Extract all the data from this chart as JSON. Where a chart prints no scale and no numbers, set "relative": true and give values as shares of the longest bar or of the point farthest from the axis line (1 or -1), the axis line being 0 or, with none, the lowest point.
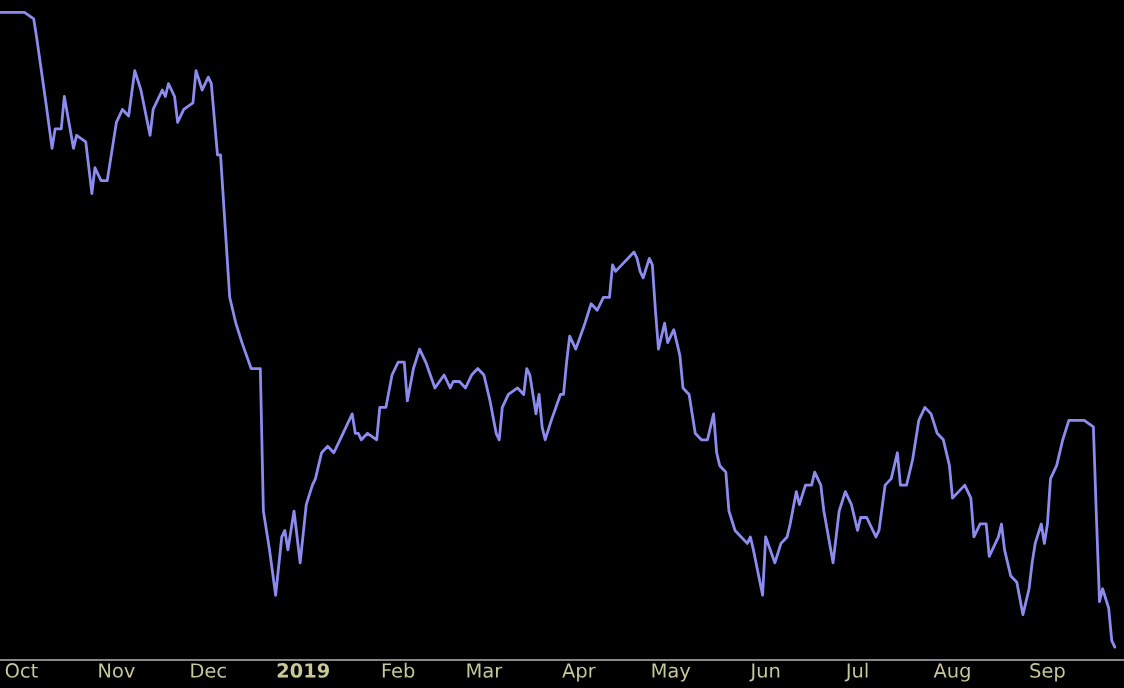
{
  "chart_data": {
    "type": "line",
    "relative": true,
    "grid": false,
    "marker": "none",
    "line_style": "solid",
    "xlim": [
      "2018-09-24",
      "2019-09-26"
    ],
    "xticks": [
      {
        "value": "2018-10-01",
        "label": "Oct"
      },
      {
        "value": "2018-11-01",
        "label": "Nov"
      },
      {
        "value": "2018-12-01",
        "label": "Dec"
      },
      {
        "value": "2019-01-01",
        "label": "2019"
      },
      {
        "value": "2019-02-01",
        "label": "Feb"
      },
      {
        "value": "2019-03-01",
        "label": "Mar"
      },
      {
        "value": "2019-04-01",
        "label": "Apr"
      },
      {
        "value": "2019-05-01",
        "label": "May"
      },
      {
        "value": "2019-06-01",
        "label": "Jun"
      },
      {
        "value": "2019-07-01",
        "label": "Jul"
      },
      {
        "value": "2019-08-01",
        "label": "Aug"
      },
      {
        "value": "2019-09-01",
        "label": "Sep"
      }
    ],
    "x": [
      "2018-09-24",
      "2018-09-30",
      "2018-10-02",
      "2018-10-05",
      "2018-10-06",
      "2018-10-09",
      "2018-10-11",
      "2018-10-12",
      "2018-10-14",
      "2018-10-15",
      "2018-10-18",
      "2018-10-19",
      "2018-10-22",
      "2018-10-24",
      "2018-10-25",
      "2018-10-27",
      "2018-10-29",
      "2018-10-31",
      "2018-11-01",
      "2018-11-03",
      "2018-11-05",
      "2018-11-07",
      "2018-11-09",
      "2018-11-12",
      "2018-11-13",
      "2018-11-16",
      "2018-11-17",
      "2018-11-18",
      "2018-11-20",
      "2018-11-21",
      "2018-11-23",
      "2018-11-26",
      "2018-11-27",
      "2018-11-29",
      "2018-12-01",
      "2018-12-02",
      "2018-12-04",
      "2018-12-05",
      "2018-12-08",
      "2018-12-10",
      "2018-12-12",
      "2018-12-15",
      "2018-12-16",
      "2018-12-18",
      "2018-12-19",
      "2018-12-21",
      "2018-12-23",
      "2018-12-25",
      "2018-12-26",
      "2018-12-27",
      "2018-12-29",
      "2018-12-31",
      "2019-01-02",
      "2019-01-04",
      "2019-01-05",
      "2019-01-07",
      "2019-01-09",
      "2019-01-11",
      "2019-01-13",
      "2019-01-15",
      "2019-01-17",
      "2019-01-18",
      "2019-01-19",
      "2019-01-20",
      "2019-01-22",
      "2019-01-25",
      "2019-01-26",
      "2019-01-28",
      "2019-01-30",
      "2019-02-01",
      "2019-02-03",
      "2019-02-04",
      "2019-02-06",
      "2019-02-08",
      "2019-02-10",
      "2019-02-13",
      "2019-02-16",
      "2019-02-18",
      "2019-02-19",
      "2019-02-21",
      "2019-02-23",
      "2019-02-25",
      "2019-02-27",
      "2019-03-01",
      "2019-03-03",
      "2019-03-05",
      "2019-03-06",
      "2019-03-07",
      "2019-03-09",
      "2019-03-12",
      "2019-03-14",
      "2019-03-15",
      "2019-03-16",
      "2019-03-18",
      "2019-03-19",
      "2019-03-20",
      "2019-03-21",
      "2019-03-23",
      "2019-03-26",
      "2019-03-27",
      "2019-03-28",
      "2019-03-29",
      "2019-03-31",
      "2019-04-03",
      "2019-04-05",
      "2019-04-07",
      "2019-04-09",
      "2019-04-11",
      "2019-04-12",
      "2019-04-13",
      "2019-04-15",
      "2019-04-17",
      "2019-04-19",
      "2019-04-20",
      "2019-04-21",
      "2019-04-22",
      "2019-04-24",
      "2019-04-25",
      "2019-04-26",
      "2019-04-27",
      "2019-04-29",
      "2019-04-30",
      "2019-05-02",
      "2019-05-04",
      "2019-05-05",
      "2019-05-07",
      "2019-05-09",
      "2019-05-11",
      "2019-05-13",
      "2019-05-15",
      "2019-05-16",
      "2019-05-17",
      "2019-05-19",
      "2019-05-20",
      "2019-05-22",
      "2019-05-24",
      "2019-05-26",
      "2019-05-27",
      "2019-05-28",
      "2019-05-31",
      "2019-06-01",
      "2019-06-04",
      "2019-06-06",
      "2019-06-08",
      "2019-06-09",
      "2019-06-11",
      "2019-06-12",
      "2019-06-14",
      "2019-06-16",
      "2019-06-17",
      "2019-06-19",
      "2019-06-20",
      "2019-06-23",
      "2019-06-25",
      "2019-06-27",
      "2019-06-29",
      "2019-07-01",
      "2019-07-02",
      "2019-07-04",
      "2019-07-07",
      "2019-07-08",
      "2019-07-10",
      "2019-07-12",
      "2019-07-14",
      "2019-07-15",
      "2019-07-17",
      "2019-07-19",
      "2019-07-21",
      "2019-07-23",
      "2019-07-25",
      "2019-07-27",
      "2019-07-29",
      "2019-07-31",
      "2019-08-01",
      "2019-08-03",
      "2019-08-05",
      "2019-08-07",
      "2019-08-08",
      "2019-08-10",
      "2019-08-12",
      "2019-08-13",
      "2019-08-15",
      "2019-08-16",
      "2019-08-17",
      "2019-08-18",
      "2019-08-20",
      "2019-08-22",
      "2019-08-24",
      "2019-08-26",
      "2019-08-27",
      "2019-08-28",
      "2019-08-30",
      "2019-08-31",
      "2019-09-01",
      "2019-09-02",
      "2019-09-04",
      "2019-09-06",
      "2019-09-08",
      "2019-09-10",
      "2019-09-13",
      "2019-09-16",
      "2019-09-17",
      "2019-09-18",
      "2019-09-19",
      "2019-09-21",
      "2019-09-22",
      "2019-09-23"
    ],
    "series": [
      {
        "color": "#8c8cf0",
        "values": [
          1.0,
          1.0,
          1.0,
          0.99,
          0.96,
          0.86,
          0.79,
          0.82,
          0.82,
          0.87,
          0.79,
          0.81,
          0.8,
          0.72,
          0.76,
          0.74,
          0.74,
          0.8,
          0.83,
          0.85,
          0.84,
          0.91,
          0.88,
          0.81,
          0.85,
          0.88,
          0.87,
          0.89,
          0.87,
          0.83,
          0.85,
          0.86,
          0.91,
          0.88,
          0.9,
          0.89,
          0.78,
          0.78,
          0.56,
          0.52,
          0.49,
          0.45,
          0.45,
          0.45,
          0.23,
          0.17,
          0.1,
          0.19,
          0.2,
          0.17,
          0.23,
          0.15,
          0.24,
          0.27,
          0.28,
          0.32,
          0.33,
          0.32,
          0.34,
          0.36,
          0.38,
          0.35,
          0.35,
          0.34,
          0.35,
          0.34,
          0.39,
          0.39,
          0.44,
          0.46,
          0.46,
          0.4,
          0.45,
          0.48,
          0.46,
          0.42,
          0.44,
          0.42,
          0.43,
          0.43,
          0.42,
          0.44,
          0.45,
          0.44,
          0.4,
          0.35,
          0.34,
          0.39,
          0.41,
          0.42,
          0.41,
          0.45,
          0.44,
          0.38,
          0.41,
          0.36,
          0.34,
          0.37,
          0.41,
          0.41,
          0.46,
          0.5,
          0.48,
          0.52,
          0.55,
          0.54,
          0.56,
          0.56,
          0.61,
          0.6,
          0.61,
          0.62,
          0.63,
          0.62,
          0.6,
          0.59,
          0.62,
          0.61,
          0.54,
          0.48,
          0.52,
          0.49,
          0.51,
          0.47,
          0.42,
          0.41,
          0.35,
          0.34,
          0.34,
          0.38,
          0.32,
          0.3,
          0.29,
          0.23,
          0.2,
          0.19,
          0.18,
          0.19,
          0.17,
          0.1,
          0.19,
          0.15,
          0.18,
          0.19,
          0.21,
          0.26,
          0.24,
          0.27,
          0.27,
          0.29,
          0.27,
          0.23,
          0.15,
          0.23,
          0.26,
          0.24,
          0.2,
          0.22,
          0.22,
          0.19,
          0.2,
          0.27,
          0.28,
          0.32,
          0.27,
          0.27,
          0.31,
          0.37,
          0.39,
          0.38,
          0.35,
          0.34,
          0.3,
          0.25,
          0.26,
          0.27,
          0.25,
          0.19,
          0.21,
          0.21,
          0.16,
          0.18,
          0.19,
          0.21,
          0.17,
          0.13,
          0.12,
          0.07,
          0.11,
          0.15,
          0.18,
          0.21,
          0.18,
          0.21,
          0.28,
          0.3,
          0.34,
          0.37,
          0.37,
          0.37,
          0.36,
          0.22,
          0.09,
          0.11,
          0.08,
          0.03,
          0.02
        ]
      }
    ]
  }
}
